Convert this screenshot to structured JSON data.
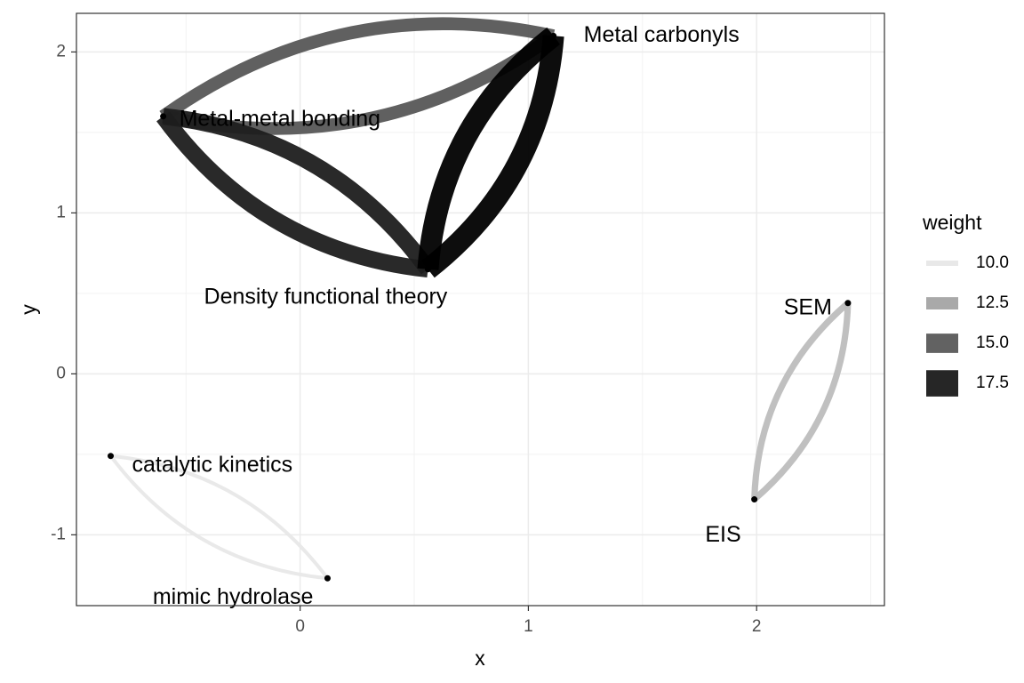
{
  "chart_data": {
    "type": "network",
    "xlabel": "x",
    "ylabel": "y",
    "xlim": [
      -0.98,
      2.56
    ],
    "ylim": [
      -1.44,
      2.24
    ],
    "x_ticks": [
      0,
      1,
      2
    ],
    "y_ticks": [
      -1,
      0,
      1,
      2
    ],
    "grid": true,
    "legend": {
      "title": "weight",
      "position": "right",
      "entries": [
        {
          "label": "10.0",
          "value": 10.0,
          "color": "#e8e8e8"
        },
        {
          "label": "12.5",
          "value": 12.5,
          "color": "#a9a9a9"
        },
        {
          "label": "15.0",
          "value": 15.0,
          "color": "#626262"
        },
        {
          "label": "17.5",
          "value": 17.5,
          "color": "#262626"
        }
      ]
    },
    "nodes": [
      {
        "name": "Metal carbonyls",
        "x": 1.11,
        "y": 2.1
      },
      {
        "name": "Metal-metal bonding",
        "x": -0.6,
        "y": 1.6
      },
      {
        "name": "Density functional theory",
        "x": 0.56,
        "y": 0.65
      },
      {
        "name": "SEM",
        "x": 2.4,
        "y": 0.44
      },
      {
        "name": "EIS",
        "x": 1.99,
        "y": -0.78
      },
      {
        "name": "catalytic kinetics",
        "x": -0.83,
        "y": -0.51
      },
      {
        "name": "mimic hydrolase",
        "x": 0.12,
        "y": -1.27
      }
    ],
    "edges": [
      {
        "from": "Metal carbonyls",
        "to": "Metal-metal bonding",
        "weight": 15.0
      },
      {
        "from": "Metal-metal bonding",
        "to": "Density functional theory",
        "weight": 17.0
      },
      {
        "from": "Density functional theory",
        "to": "Metal carbonyls",
        "weight": 19.5
      },
      {
        "from": "SEM",
        "to": "EIS",
        "weight": 11.5
      },
      {
        "from": "catalytic kinetics",
        "to": "mimic hydrolase",
        "weight": 10.0
      }
    ]
  }
}
